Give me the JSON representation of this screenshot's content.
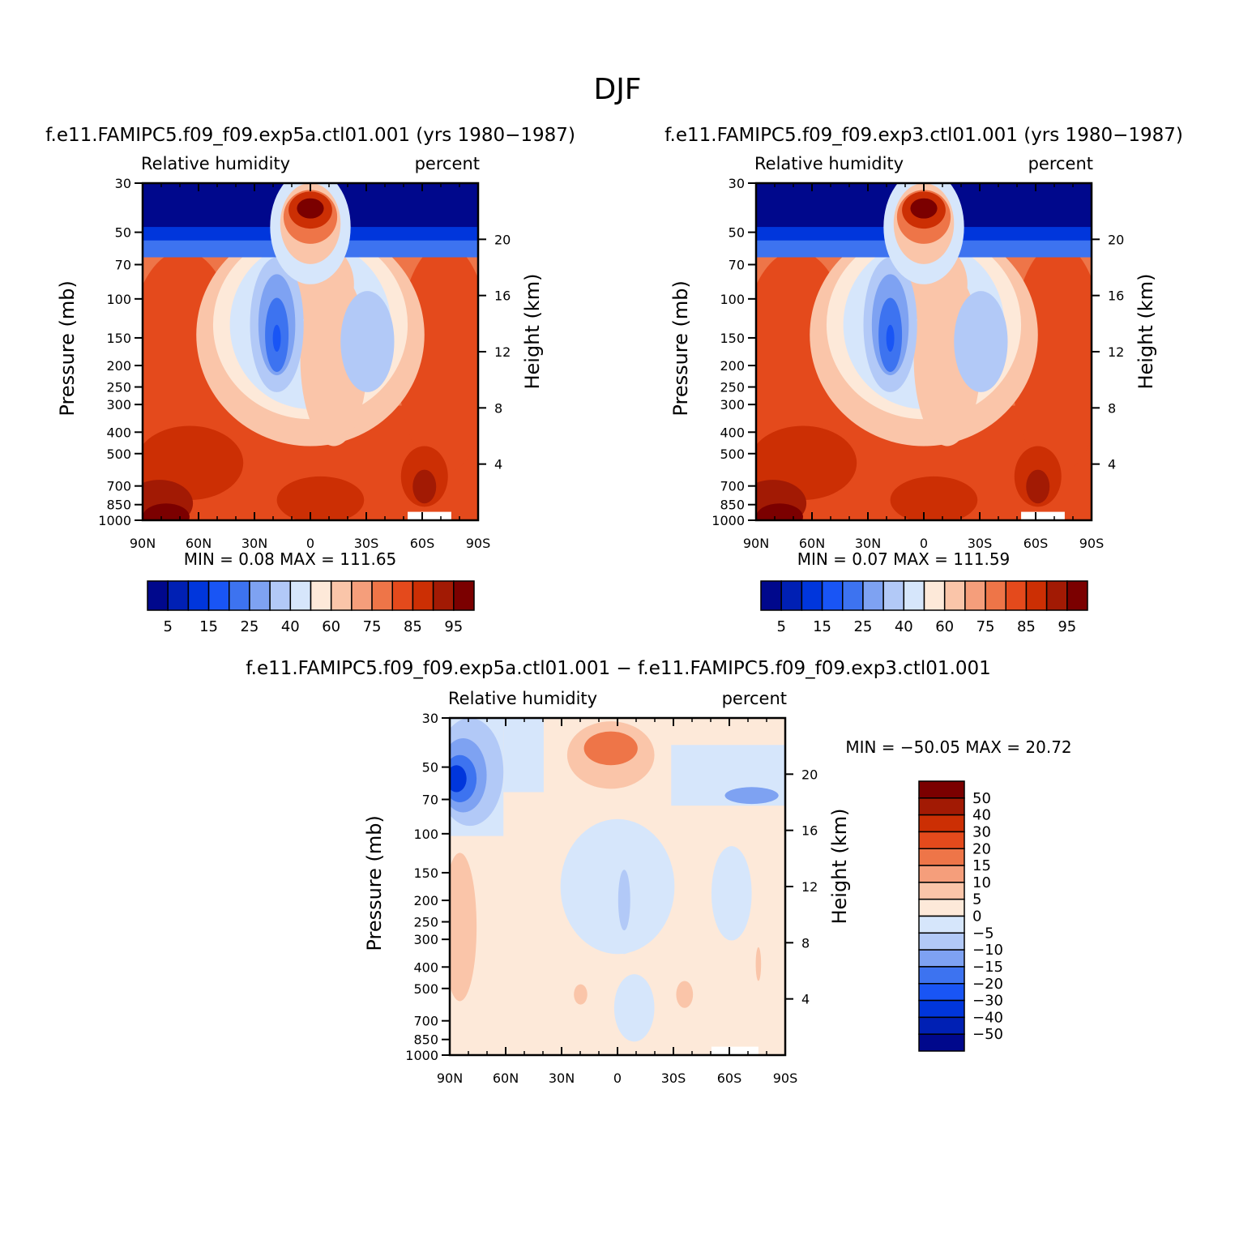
{
  "figure_title": "DJF",
  "colors": {
    "abs_palette": [
      "#00088c",
      "#0020b4",
      "#0036dc",
      "#1955f5",
      "#3d73f0",
      "#7ea2f2",
      "#b2c9f7",
      "#d6e6fb",
      "#fde9d9",
      "#fac5a9",
      "#f59e7b",
      "#ee7548",
      "#e44a1c",
      "#cc2f04",
      "#a21a04",
      "#7b0000"
    ],
    "diff_palette": [
      "#00088c",
      "#0020b4",
      "#0036dc",
      "#1955f5",
      "#3d73f0",
      "#7ea2f2",
      "#b2c9f7",
      "#d6e6fb",
      "#fde9d9",
      "#fac5a9",
      "#f59e7b",
      "#ee7548",
      "#e44a1c",
      "#cc2f04",
      "#a21a04",
      "#7b0000"
    ]
  },
  "chart_data": [
    {
      "type": "contour",
      "panel": "top-left",
      "header": "f.e11.FAMIPC5.f09_f09.exp5a.ctl01.001 (yrs 1980−1987)",
      "left_label": "Relative humidity",
      "right_label": "percent",
      "xlabel": "",
      "ylabel": "Pressure (mb)",
      "ylabel_right": "Height (km)",
      "x_ticks": [
        "90N",
        "60N",
        "30N",
        "0",
        "30S",
        "60S",
        "90S"
      ],
      "x_range": [
        90,
        -90
      ],
      "y_ticks": [
        30,
        50,
        70,
        100,
        150,
        200,
        250,
        300,
        400,
        500,
        700,
        850,
        1000
      ],
      "y_tick_labels": [
        "30",
        "50",
        "70",
        "100",
        "150",
        "200",
        "250",
        "300",
        "400",
        "500",
        "700",
        "850",
        "1000"
      ],
      "y_range": [
        30,
        1000
      ],
      "height_ticks": [
        20,
        16,
        12,
        8,
        4
      ],
      "min_label": "MIN =",
      "min_value": "0.08",
      "max_label": "MAX =",
      "max_value": "111.65",
      "levels": [
        5,
        10,
        15,
        20,
        25,
        30,
        40,
        50,
        60,
        70,
        75,
        80,
        85,
        90,
        95
      ],
      "colorbar_labels": [
        "5",
        "15",
        "25",
        "40",
        "60",
        "75",
        "85",
        "95"
      ],
      "colorbar_label_positions": [
        0,
        2,
        4,
        6,
        8,
        10,
        12,
        14
      ]
    },
    {
      "type": "contour",
      "panel": "top-right",
      "header": "f.e11.FAMIPC5.f09_f09.exp3.ctl01.001 (yrs 1980−1987)",
      "left_label": "Relative humidity",
      "right_label": "percent",
      "xlabel": "",
      "ylabel": "Pressure (mb)",
      "ylabel_right": "Height (km)",
      "x_ticks": [
        "90N",
        "60N",
        "30N",
        "0",
        "30S",
        "60S",
        "90S"
      ],
      "x_range": [
        90,
        -90
      ],
      "y_ticks": [
        30,
        50,
        70,
        100,
        150,
        200,
        250,
        300,
        400,
        500,
        700,
        850,
        1000
      ],
      "y_tick_labels": [
        "30",
        "50",
        "70",
        "100",
        "150",
        "200",
        "250",
        "300",
        "400",
        "500",
        "700",
        "850",
        "1000"
      ],
      "y_range": [
        30,
        1000
      ],
      "height_ticks": [
        20,
        16,
        12,
        8,
        4
      ],
      "min_label": "MIN =",
      "min_value": "0.07",
      "max_label": "MAX =",
      "max_value": "111.59",
      "levels": [
        5,
        10,
        15,
        20,
        25,
        30,
        40,
        50,
        60,
        70,
        75,
        80,
        85,
        90,
        95
      ],
      "colorbar_labels": [
        "5",
        "15",
        "25",
        "40",
        "60",
        "75",
        "85",
        "95"
      ],
      "colorbar_label_positions": [
        0,
        2,
        4,
        6,
        8,
        10,
        12,
        14
      ]
    },
    {
      "type": "contour",
      "panel": "bottom",
      "header": "f.e11.FAMIPC5.f09_f09.exp5a.ctl01.001 − f.e11.FAMIPC5.f09_f09.exp3.ctl01.001",
      "left_label": "Relative humidity",
      "right_label": "percent",
      "xlabel": "",
      "ylabel": "Pressure (mb)",
      "ylabel_right": "Height (km)",
      "x_ticks": [
        "90N",
        "60N",
        "30N",
        "0",
        "30S",
        "60S",
        "90S"
      ],
      "x_range": [
        90,
        -90
      ],
      "y_ticks": [
        30,
        50,
        70,
        100,
        150,
        200,
        250,
        300,
        400,
        500,
        700,
        850,
        1000
      ],
      "y_tick_labels": [
        "30",
        "50",
        "70",
        "100",
        "150",
        "200",
        "250",
        "300",
        "400",
        "500",
        "700",
        "850",
        "1000"
      ],
      "y_range": [
        30,
        1000
      ],
      "height_ticks": [
        20,
        16,
        12,
        8,
        4
      ],
      "min_label": "MIN =",
      "min_value": "−50.05",
      "max_label": "MAX =",
      "max_value": "20.72",
      "levels": [
        -50,
        -40,
        -30,
        -20,
        -15,
        -10,
        -5,
        0,
        5,
        10,
        15,
        20,
        30,
        40,
        50
      ],
      "colorbar_labels": [
        "50",
        "40",
        "30",
        "20",
        "15",
        "10",
        "5",
        "0",
        "−5",
        "−10",
        "−15",
        "−20",
        "−30",
        "−40",
        "−50"
      ]
    }
  ]
}
